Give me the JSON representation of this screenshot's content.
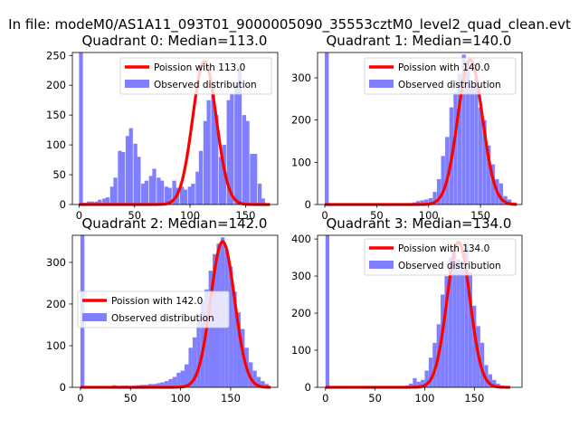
{
  "figure_title": "In file: modeM0/AS1A11_093T01_9000005090_35553cztM0_level2_quad_clean.evt",
  "colors": {
    "hist": "#7f7fff",
    "fit": "#ff0000",
    "text": "#000000"
  },
  "chart_data": [
    {
      "type": "histogram",
      "title": "Quadrant 0: Median=113.0",
      "xlim": [
        -6,
        179
      ],
      "ylim": [
        0,
        255
      ],
      "xticks": [
        0,
        50,
        100,
        150
      ],
      "yticks": [
        0,
        50,
        100,
        150,
        200,
        250
      ],
      "bin_width": 3.5,
      "legend_position": "upper right",
      "legend": [
        "Poission with 113.0",
        "Observed distribution"
      ],
      "fit_label": "Poission with 113.0",
      "hist_label": "Observed distribution",
      "bins": [
        [
          0,
          255
        ],
        [
          3,
          3
        ],
        [
          7,
          5
        ],
        [
          10,
          5
        ],
        [
          14,
          5
        ],
        [
          17,
          8
        ],
        [
          21,
          10
        ],
        [
          24,
          12
        ],
        [
          28,
          30
        ],
        [
          31,
          45
        ],
        [
          35,
          90
        ],
        [
          38,
          88
        ],
        [
          42,
          115
        ],
        [
          45,
          128
        ],
        [
          49,
          102
        ],
        [
          52,
          80
        ],
        [
          56,
          35
        ],
        [
          59,
          40
        ],
        [
          63,
          48
        ],
        [
          66,
          60
        ],
        [
          70,
          45
        ],
        [
          73,
          40
        ],
        [
          77,
          30
        ],
        [
          80,
          28
        ],
        [
          84,
          40
        ],
        [
          87,
          28
        ],
        [
          91,
          30
        ],
        [
          94,
          25
        ],
        [
          98,
          30
        ],
        [
          101,
          35
        ],
        [
          105,
          55
        ],
        [
          108,
          90
        ],
        [
          112,
          140
        ],
        [
          115,
          175
        ],
        [
          119,
          200
        ],
        [
          122,
          150
        ],
        [
          126,
          80
        ],
        [
          129,
          100
        ],
        [
          133,
          175
        ],
        [
          136,
          185
        ],
        [
          140,
          200
        ],
        [
          143,
          230
        ],
        [
          147,
          150
        ],
        [
          150,
          140
        ],
        [
          154,
          85
        ],
        [
          157,
          85
        ],
        [
          161,
          35
        ],
        [
          164,
          10
        ]
      ],
      "fit": {
        "amplitude": 240,
        "mean": 113.0,
        "range": [
          0,
          172
        ]
      }
    },
    {
      "type": "histogram",
      "title": "Quadrant 1: Median=140.0",
      "xlim": [
        -7,
        190
      ],
      "ylim": [
        0,
        360
      ],
      "xticks": [
        0,
        50,
        100,
        150
      ],
      "yticks": [
        0,
        100,
        200,
        300
      ],
      "bin_width": 3.8,
      "legend_position": "upper right",
      "legend": [
        "Poission with 140.0",
        "Observed distribution"
      ],
      "fit_label": "Poission with 140.0",
      "hist_label": "Observed distribution",
      "bins": [
        [
          0,
          360
        ],
        [
          4,
          0
        ],
        [
          8,
          0
        ],
        [
          12,
          0
        ],
        [
          16,
          0
        ],
        [
          20,
          0
        ],
        [
          24,
          0
        ],
        [
          28,
          0
        ],
        [
          32,
          1
        ],
        [
          36,
          0
        ],
        [
          40,
          0
        ],
        [
          44,
          0
        ],
        [
          48,
          0
        ],
        [
          52,
          1
        ],
        [
          56,
          0
        ],
        [
          60,
          0
        ],
        [
          64,
          0
        ],
        [
          68,
          0
        ],
        [
          72,
          1
        ],
        [
          76,
          3
        ],
        [
          80,
          2
        ],
        [
          84,
          5
        ],
        [
          88,
          8
        ],
        [
          92,
          10
        ],
        [
          96,
          12
        ],
        [
          100,
          15
        ],
        [
          104,
          30
        ],
        [
          108,
          60
        ],
        [
          112,
          115
        ],
        [
          116,
          160
        ],
        [
          120,
          230
        ],
        [
          124,
          265
        ],
        [
          128,
          310
        ],
        [
          132,
          355
        ],
        [
          136,
          340
        ],
        [
          140,
          280
        ],
        [
          144,
          300
        ],
        [
          148,
          230
        ],
        [
          152,
          200
        ],
        [
          156,
          140
        ],
        [
          160,
          95
        ],
        [
          164,
          60
        ],
        [
          168,
          50
        ],
        [
          172,
          20
        ],
        [
          176,
          12
        ],
        [
          180,
          5
        ]
      ],
      "fit": {
        "amplitude": 343,
        "mean": 140.0,
        "range": [
          0,
          185
        ]
      }
    },
    {
      "type": "histogram",
      "title": "Quadrant 2: Median=142.0",
      "xlim": [
        -8,
        197
      ],
      "ylim": [
        0,
        365
      ],
      "xticks": [
        0,
        50,
        100,
        150
      ],
      "yticks": [
        0,
        100,
        200,
        300
      ],
      "bin_width": 4.0,
      "legend_position": "center left",
      "legend": [
        "Poission with 142.0",
        "Observed distribution"
      ],
      "fit_label": "Poission with 142.0",
      "hist_label": "Observed distribution",
      "bins": [
        [
          0,
          365
        ],
        [
          4,
          3
        ],
        [
          8,
          2
        ],
        [
          12,
          2
        ],
        [
          16,
          3
        ],
        [
          20,
          3
        ],
        [
          24,
          2
        ],
        [
          28,
          3
        ],
        [
          32,
          5
        ],
        [
          36,
          3
        ],
        [
          40,
          4
        ],
        [
          44,
          4
        ],
        [
          48,
          3
        ],
        [
          52,
          4
        ],
        [
          56,
          5
        ],
        [
          60,
          6
        ],
        [
          64,
          6
        ],
        [
          68,
          8
        ],
        [
          72,
          8
        ],
        [
          76,
          10
        ],
        [
          80,
          12
        ],
        [
          84,
          15
        ],
        [
          88,
          20
        ],
        [
          92,
          25
        ],
        [
          96,
          35
        ],
        [
          100,
          40
        ],
        [
          104,
          55
        ],
        [
          108,
          95
        ],
        [
          112,
          120
        ],
        [
          116,
          165
        ],
        [
          120,
          210
        ],
        [
          124,
          235
        ],
        [
          128,
          280
        ],
        [
          132,
          320
        ],
        [
          136,
          345
        ],
        [
          140,
          360
        ],
        [
          144,
          330
        ],
        [
          148,
          290
        ],
        [
          152,
          230
        ],
        [
          156,
          180
        ],
        [
          160,
          140
        ],
        [
          164,
          95
        ],
        [
          168,
          60
        ],
        [
          172,
          40
        ],
        [
          176,
          25
        ],
        [
          180,
          15
        ],
        [
          184,
          8
        ]
      ],
      "fit": {
        "amplitude": 350,
        "mean": 142.0,
        "range": [
          0,
          190
        ]
      }
    },
    {
      "type": "histogram",
      "title": "Quadrant 3: Median=134.0",
      "xlim": [
        -8,
        198
      ],
      "ylim": [
        0,
        410
      ],
      "xticks": [
        0,
        50,
        100,
        150
      ],
      "yticks": [
        0,
        100,
        200,
        300,
        400
      ],
      "bin_width": 3.9,
      "legend_position": "upper right",
      "legend": [
        "Poission with 134.0",
        "Observed distribution"
      ],
      "fit_label": "Poission with 134.0",
      "hist_label": "Observed distribution",
      "bins": [
        [
          0,
          410
        ],
        [
          4,
          0
        ],
        [
          8,
          0
        ],
        [
          12,
          0
        ],
        [
          16,
          0
        ],
        [
          20,
          0
        ],
        [
          24,
          0
        ],
        [
          28,
          0
        ],
        [
          32,
          1
        ],
        [
          36,
          0
        ],
        [
          40,
          0
        ],
        [
          44,
          0
        ],
        [
          48,
          0
        ],
        [
          52,
          1
        ],
        [
          56,
          0
        ],
        [
          60,
          0
        ],
        [
          64,
          1
        ],
        [
          68,
          1
        ],
        [
          72,
          2
        ],
        [
          76,
          3
        ],
        [
          80,
          5
        ],
        [
          84,
          10
        ],
        [
          88,
          25
        ],
        [
          92,
          15
        ],
        [
          96,
          20
        ],
        [
          100,
          45
        ],
        [
          104,
          80
        ],
        [
          108,
          120
        ],
        [
          112,
          170
        ],
        [
          116,
          250
        ],
        [
          120,
          300
        ],
        [
          124,
          350
        ],
        [
          128,
          380
        ],
        [
          132,
          345
        ],
        [
          136,
          330
        ],
        [
          140,
          390
        ],
        [
          144,
          310
        ],
        [
          148,
          220
        ],
        [
          152,
          165
        ],
        [
          156,
          120
        ],
        [
          160,
          60
        ],
        [
          164,
          35
        ],
        [
          168,
          20
        ],
        [
          172,
          10
        ],
        [
          176,
          5
        ],
        [
          180,
          2
        ]
      ],
      "fit": {
        "amplitude": 392,
        "mean": 134.0,
        "range": [
          0,
          186
        ]
      }
    }
  ]
}
